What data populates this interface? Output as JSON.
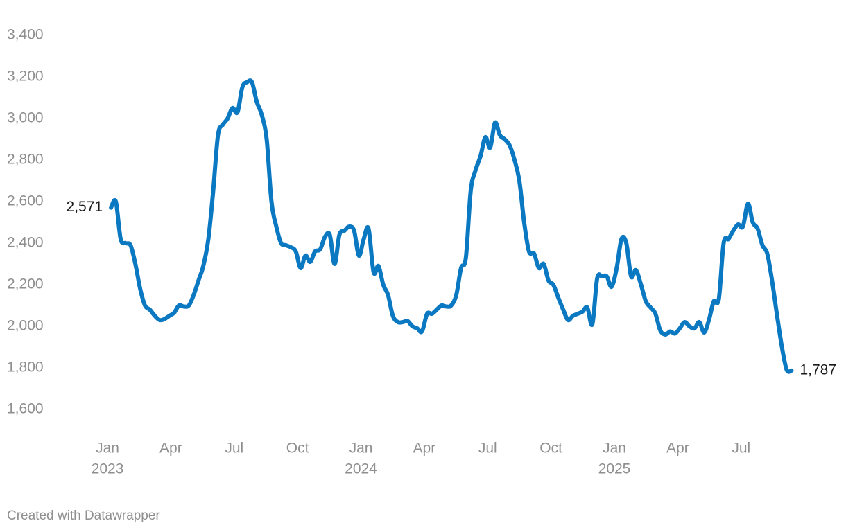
{
  "chart_data": {
    "type": "line",
    "color": "#0b78c2",
    "x": [
      2023.014,
      2023.033,
      2023.052,
      2023.072,
      2023.091,
      2023.11,
      2023.129,
      2023.148,
      2023.167,
      2023.187,
      2023.206,
      2023.225,
      2023.244,
      2023.263,
      2023.282,
      2023.302,
      2023.321,
      2023.34,
      2023.359,
      2023.378,
      2023.398,
      2023.417,
      2023.436,
      2023.455,
      2023.474,
      2023.493,
      2023.513,
      2023.532,
      2023.551,
      2023.57,
      2023.589,
      2023.608,
      2023.628,
      2023.647,
      2023.666,
      2023.685,
      2023.704,
      2023.724,
      2023.743,
      2023.762,
      2023.781,
      2023.8,
      2023.819,
      2023.839,
      2023.858,
      2023.877,
      2023.896,
      2023.915,
      2023.935,
      2023.954,
      2023.973,
      2023.992,
      2024.011,
      2024.03,
      2024.05,
      2024.069,
      2024.088,
      2024.107,
      2024.126,
      2024.146,
      2024.165,
      2024.184,
      2024.203,
      2024.222,
      2024.241,
      2024.261,
      2024.28,
      2024.299,
      2024.318,
      2024.337,
      2024.356,
      2024.376,
      2024.395,
      2024.414,
      2024.433,
      2024.452,
      2024.472,
      2024.491,
      2024.51,
      2024.529,
      2024.548,
      2024.567,
      2024.587,
      2024.606,
      2024.625,
      2024.644,
      2024.663,
      2024.683,
      2024.702,
      2024.721,
      2024.74,
      2024.759,
      2024.778,
      2024.798,
      2024.817,
      2024.836,
      2024.855,
      2024.874,
      2024.893,
      2024.913,
      2024.932,
      2024.951,
      2024.97,
      2024.989,
      2025.009,
      2025.028,
      2025.047,
      2025.066,
      2025.085,
      2025.105,
      2025.124,
      2025.143,
      2025.162,
      2025.181,
      2025.201,
      2025.22,
      2025.239,
      2025.258,
      2025.277,
      2025.296,
      2025.316,
      2025.335,
      2025.354,
      2025.373,
      2025.392,
      2025.412,
      2025.431,
      2025.45,
      2025.469,
      2025.488,
      2025.507,
      2025.527,
      2025.546,
      2025.565,
      2025.584,
      2025.603,
      2025.622,
      2025.642,
      2025.661,
      2025.68,
      2025.699
    ],
    "values": [
      2571,
      2600,
      2420,
      2400,
      2390,
      2300,
      2180,
      2100,
      2080,
      2050,
      2030,
      2035,
      2050,
      2065,
      2100,
      2095,
      2100,
      2150,
      2220,
      2290,
      2420,
      2650,
      2920,
      2970,
      3000,
      3050,
      3030,
      3150,
      3175,
      3175,
      3080,
      3020,
      2900,
      2600,
      2480,
      2400,
      2390,
      2380,
      2360,
      2280,
      2340,
      2310,
      2360,
      2370,
      2430,
      2440,
      2300,
      2440,
      2460,
      2480,
      2460,
      2340,
      2420,
      2470,
      2260,
      2290,
      2200,
      2150,
      2050,
      2020,
      2020,
      2025,
      2000,
      1990,
      1975,
      2060,
      2060,
      2080,
      2100,
      2095,
      2100,
      2150,
      2280,
      2330,
      2650,
      2750,
      2820,
      2910,
      2860,
      2980,
      2920,
      2900,
      2870,
      2800,
      2700,
      2500,
      2360,
      2350,
      2280,
      2300,
      2220,
      2200,
      2140,
      2080,
      2030,
      2050,
      2060,
      2070,
      2090,
      2010,
      2230,
      2240,
      2240,
      2190,
      2280,
      2420,
      2400,
      2240,
      2270,
      2200,
      2120,
      2090,
      2060,
      1980,
      1960,
      1975,
      1965,
      1990,
      2020,
      2000,
      1990,
      2020,
      1970,
      2030,
      2120,
      2130,
      2400,
      2420,
      2460,
      2490,
      2480,
      2590,
      2500,
      2470,
      2390,
      2350,
      2220,
      2050,
      1900,
      1790,
      1787
    ],
    "value_labels": [
      "2,571",
      null,
      null,
      null,
      null,
      null,
      null,
      null,
      null,
      null,
      null,
      null,
      null,
      null,
      null,
      null,
      null,
      null,
      null,
      null,
      null,
      null,
      null,
      null,
      null,
      null,
      null,
      null,
      null,
      null,
      null,
      null,
      null,
      null,
      null,
      null,
      null,
      null,
      null,
      null,
      null,
      null,
      null,
      null,
      null,
      null,
      null,
      null,
      null,
      null,
      null,
      null,
      null,
      null,
      null,
      null,
      null,
      null,
      null,
      null,
      null,
      null,
      null,
      null,
      null,
      null,
      null,
      null,
      null,
      null,
      null,
      null,
      null,
      null,
      null,
      null,
      null,
      null,
      null,
      null,
      null,
      null,
      null,
      null,
      null,
      null,
      null,
      null,
      null,
      null,
      null,
      null,
      null,
      null,
      null,
      null,
      null,
      null,
      null,
      null,
      null,
      null,
      null,
      null,
      null,
      null,
      null,
      null,
      null,
      null,
      null,
      null,
      null,
      null,
      null,
      null,
      null,
      null,
      null,
      null,
      null,
      null,
      null,
      null,
      null,
      null,
      null,
      null,
      null,
      null,
      null,
      null,
      null,
      null,
      null,
      null,
      null,
      null,
      null,
      null,
      "1,787"
    ],
    "xlim": [
      2023,
      2026
    ],
    "xticks": [
      {
        "value": 2023,
        "label": "Jan"
      },
      {
        "value": 2023.25,
        "label": "Apr"
      },
      {
        "value": 2023.5,
        "label": "Jul"
      },
      {
        "value": 2023.75,
        "label": "Oct"
      },
      {
        "value": 2024,
        "label": "Jan"
      },
      {
        "value": 2024.25,
        "label": "Apr"
      },
      {
        "value": 2024.5,
        "label": "Jul"
      },
      {
        "value": 2024.75,
        "label": "Oct"
      },
      {
        "value": 2025,
        "label": "Jan"
      },
      {
        "value": 2025.25,
        "label": "Apr"
      },
      {
        "value": 2025.5,
        "label": "Jul"
      }
    ],
    "year_ticks": [
      2023,
      2024,
      2025
    ],
    "ylim": [
      1600,
      3400
    ],
    "yticks": [
      {
        "value": 1600,
        "label": "1,600"
      },
      {
        "value": 1800,
        "label": "1,800"
      },
      {
        "value": 2000,
        "label": "2,000"
      },
      {
        "value": 2200,
        "label": "2,200"
      },
      {
        "value": 2400,
        "label": "2,400"
      },
      {
        "value": 2600,
        "label": "2,600"
      },
      {
        "value": 2800,
        "label": "2,800"
      },
      {
        "value": 3000,
        "label": "3,000"
      },
      {
        "value": 3200,
        "label": "3,200"
      },
      {
        "value": 3400,
        "label": "3,400"
      }
    ],
    "credit": "Created with Datawrapper"
  }
}
